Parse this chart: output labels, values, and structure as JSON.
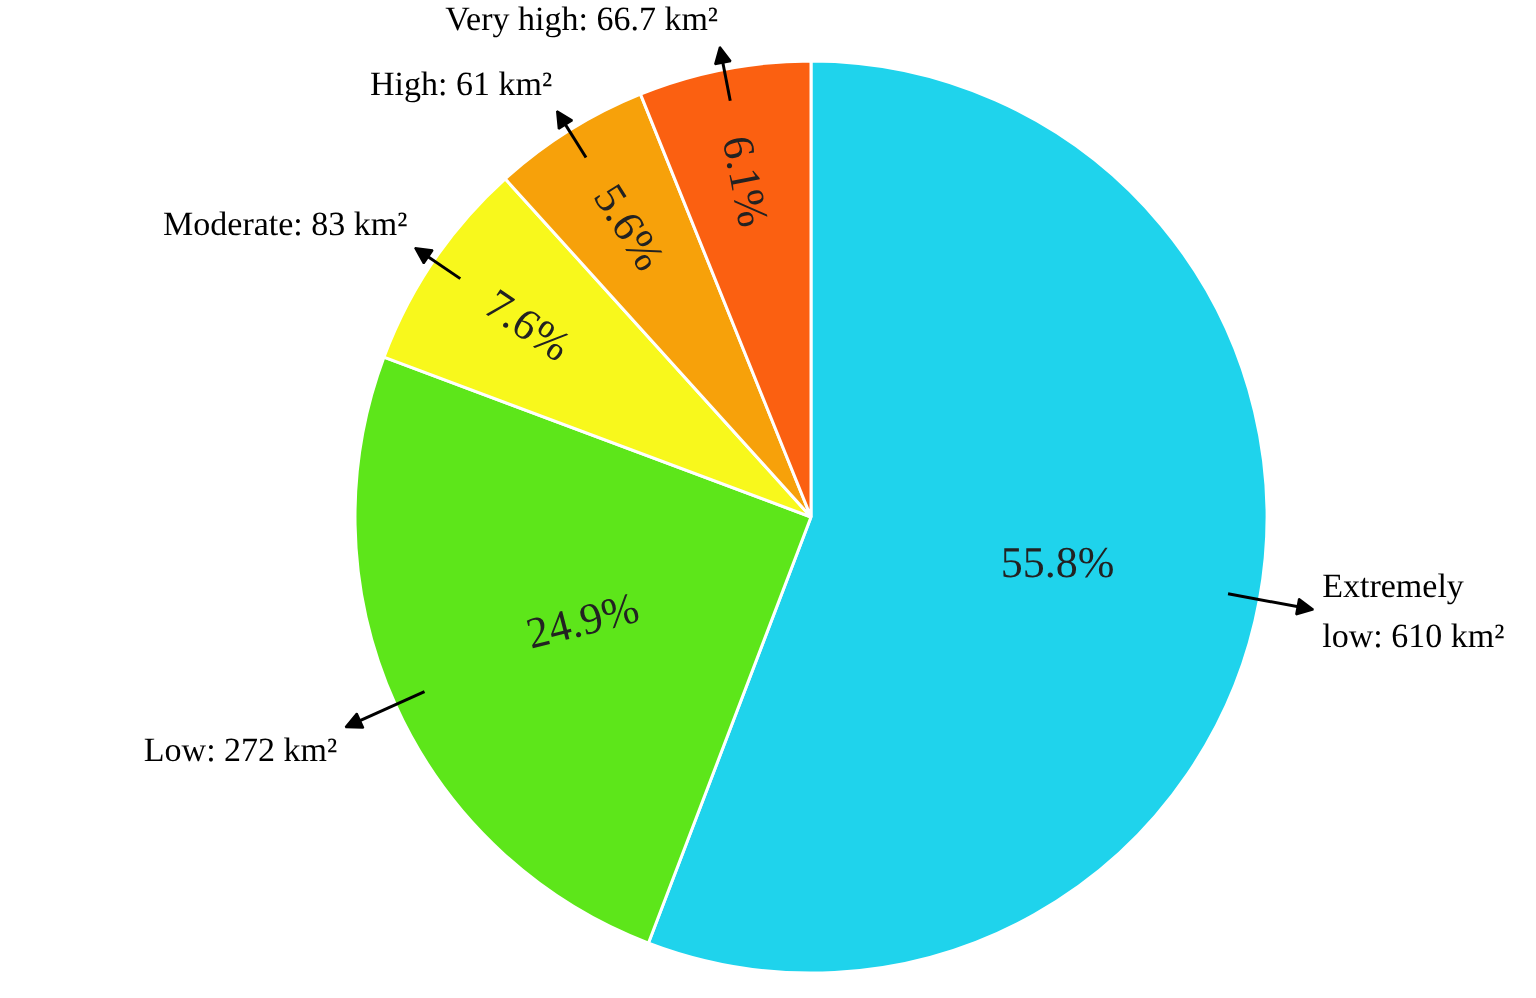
{
  "chart_data": {
    "type": "pie",
    "categories": [
      "Extremely low: 610 km²",
      "Low: 272 km²",
      "Moderate: 83 km²",
      "High: 61 km²",
      "Very high: 66.7 km²"
    ],
    "values": [
      55.8,
      24.9,
      7.6,
      5.6,
      6.1
    ],
    "value_labels": [
      "55.8%",
      "24.9%",
      "7.6%",
      "5.6%",
      "6.1%"
    ],
    "colors": [
      "#1fd3ec",
      "#5de61a",
      "#f8f81c",
      "#f7a10a",
      "#fb6011"
    ]
  }
}
